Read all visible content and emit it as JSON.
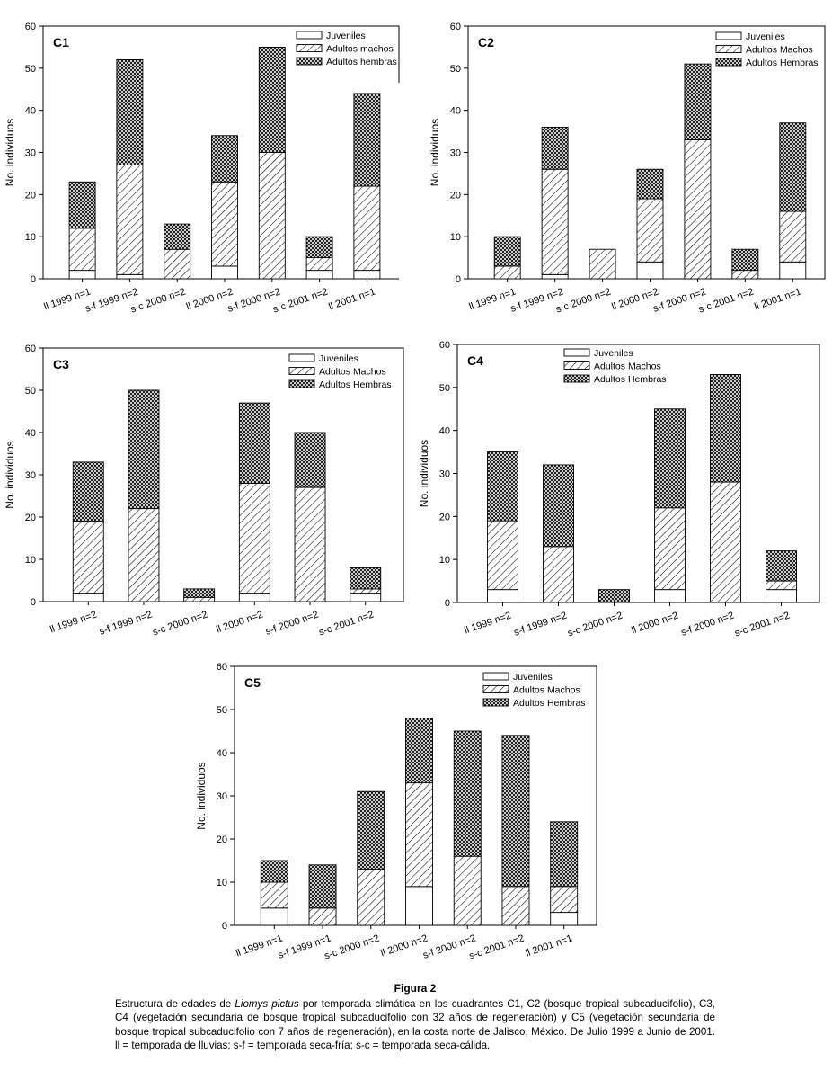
{
  "colors": {
    "juveniles": "#ffffff",
    "machos": "hatch-diagonal",
    "hembras": "crosshatch",
    "line": "#000000"
  },
  "chart_data": [
    {
      "type": "bar",
      "stacked": true,
      "panel_label": "C1",
      "ylabel": "No. individuos",
      "ylim": [
        0,
        60
      ],
      "yticks": [
        0,
        10,
        20,
        30,
        40,
        50,
        60
      ],
      "categories": [
        "ll 1999 n=1",
        "s-f 1999 n=2",
        "s-c 2000 n=2",
        "ll 2000 n=2",
        "s-f 2000 n=2",
        "s-c 2001 n=2",
        "ll 2001 n=1"
      ],
      "series": [
        {
          "name": "Juveniles",
          "values": [
            2,
            1,
            0,
            3,
            0,
            2,
            2
          ]
        },
        {
          "name": "Adultos machos",
          "values": [
            10,
            26,
            7,
            20,
            30,
            3,
            20
          ]
        },
        {
          "name": "Adultos hembras",
          "values": [
            11,
            25,
            6,
            11,
            25,
            5,
            22
          ]
        }
      ],
      "legend": "top-right"
    },
    {
      "type": "bar",
      "stacked": true,
      "panel_label": "C2",
      "ylabel": "No. individuos",
      "ylim": [
        0,
        60
      ],
      "yticks": [
        0,
        10,
        20,
        30,
        40,
        50,
        60
      ],
      "categories": [
        "ll 1999 n=1",
        "s-f 1999 n=2",
        "s-c 2000 n=2",
        "ll 2000 n=2",
        "s-f 2000 n=2",
        "s-c 2001 n=2",
        "ll 2001 n=1"
      ],
      "series": [
        {
          "name": "Juveniles",
          "values": [
            0,
            1,
            0,
            4,
            0,
            0,
            4
          ]
        },
        {
          "name": "Adultos Machos",
          "values": [
            3,
            25,
            7,
            15,
            33,
            2,
            12
          ]
        },
        {
          "name": "Adultos Hembras",
          "values": [
            7,
            10,
            0,
            7,
            18,
            5,
            21
          ]
        }
      ],
      "legend": "top-right"
    },
    {
      "type": "bar",
      "stacked": true,
      "panel_label": "C3",
      "ylabel": "No. individuos",
      "ylim": [
        0,
        60
      ],
      "yticks": [
        0,
        10,
        20,
        30,
        40,
        50,
        60
      ],
      "categories": [
        "ll 1999 n=2",
        "s-f 1999 n=2",
        "s-c 2000 n=2",
        "ll 2000 n=2",
        "s-f 2000 n=2",
        "s-c 2001 n=2"
      ],
      "series": [
        {
          "name": "Juveniles",
          "values": [
            2,
            0,
            0,
            2,
            0,
            2
          ]
        },
        {
          "name": "Adultos Machos",
          "values": [
            17,
            22,
            1,
            26,
            27,
            1
          ]
        },
        {
          "name": "Adultos Hembras",
          "values": [
            14,
            28,
            2,
            19,
            13,
            5
          ]
        }
      ],
      "legend": "top-right"
    },
    {
      "type": "bar",
      "stacked": true,
      "panel_label": "C4",
      "ylabel": "No. individuos",
      "ylim": [
        0,
        60
      ],
      "yticks": [
        0,
        10,
        20,
        30,
        40,
        50,
        60
      ],
      "categories": [
        "ll 1999 n=2",
        "s-f 1999 n=2",
        "s-c 2000 n=2",
        "ll 2000 n=2",
        "s-f 2000 n=2",
        "s-c 2001 n=2"
      ],
      "series": [
        {
          "name": "Juveniles",
          "values": [
            3,
            0,
            0,
            3,
            0,
            3
          ]
        },
        {
          "name": "Adultos Machos",
          "values": [
            16,
            13,
            0,
            19,
            28,
            2
          ]
        },
        {
          "name": "Adultos Hembras",
          "values": [
            16,
            19,
            3,
            23,
            25,
            7
          ]
        }
      ],
      "legend": "top-left"
    },
    {
      "type": "bar",
      "stacked": true,
      "panel_label": "C5",
      "ylabel": "No. individuos",
      "ylim": [
        0,
        60
      ],
      "yticks": [
        0,
        10,
        20,
        30,
        40,
        50,
        60
      ],
      "categories": [
        "ll 1999 n=1",
        "s-f 1999 n=1",
        "s-c 2000 n=2",
        "ll 2000 n=2",
        "s-f 2000 n=2",
        "s-c 2001 n=2",
        "ll 2001 n=1"
      ],
      "series": [
        {
          "name": "Juveniles",
          "values": [
            4,
            0,
            0,
            9,
            0,
            0,
            3
          ]
        },
        {
          "name": "Adultos Machos",
          "values": [
            6,
            4,
            13,
            24,
            16,
            9,
            6
          ]
        },
        {
          "name": "Adultos Hembras",
          "values": [
            5,
            10,
            18,
            15,
            29,
            35,
            15
          ]
        }
      ],
      "legend": "top-right"
    }
  ],
  "caption": {
    "title": "Figura 2",
    "text_before_species": "Estructura de edades de ",
    "species": "Liomys pictus",
    "text_after_species": " por temporada climática en los cuadrantes C1, C2 (bosque tropical subcaducifolio), C3, C4 (vegetación secundaria de bosque tropical subcaducifolio con 32 años de regeneración) y C5 (vegetación secundaria de bosque tropical subcaducifolio con 7 años de regeneración), en la costa norte de Jalisco, México. De Julio 1999 a Junio de 2001. ll = temporada de lluvias; s-f = temporada seca-fría; s-c = temporada seca-cálida."
  }
}
